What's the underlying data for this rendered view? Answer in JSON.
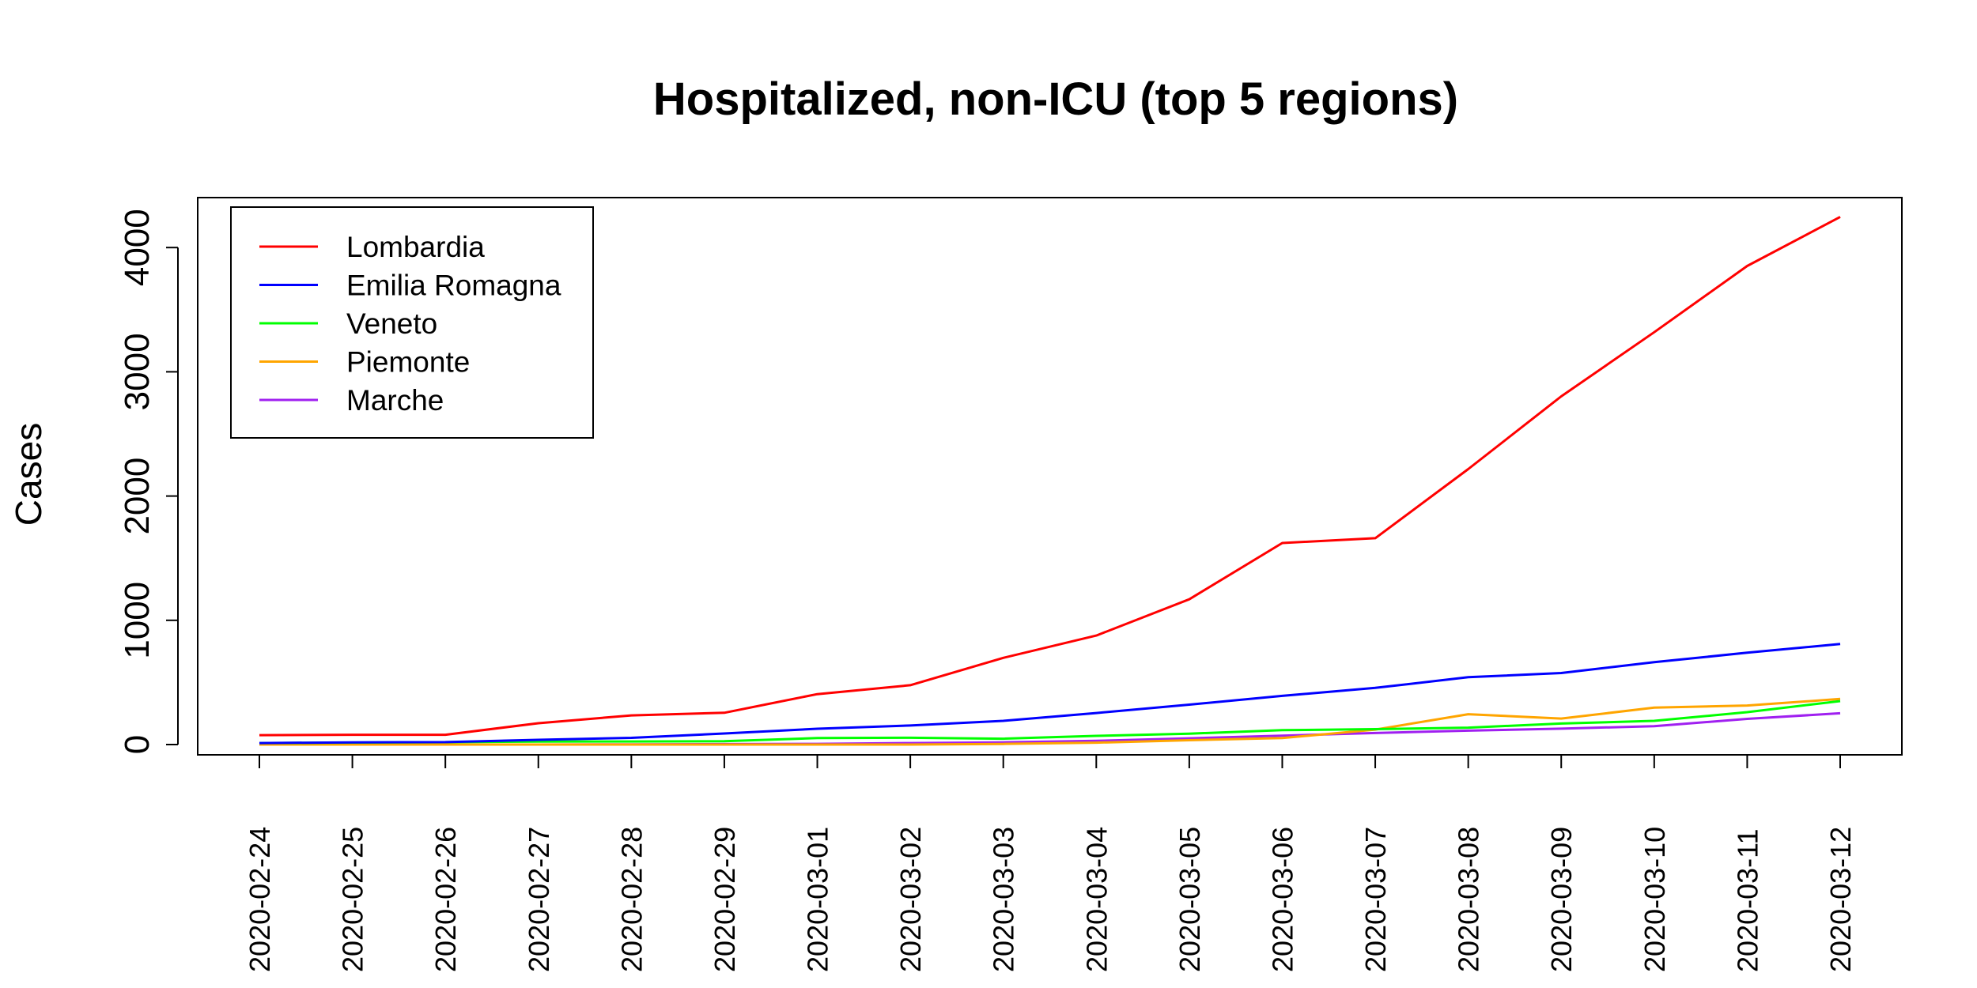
{
  "chart_data": {
    "type": "line",
    "title": "Hospitalized, non-ICU (top 5 regions)",
    "xlabel": "",
    "ylabel": "Cases",
    "ylim": [
      0,
      4400
    ],
    "yticks": [
      "0",
      "1000",
      "2000",
      "3000",
      "4000"
    ],
    "ytick_values": [
      0,
      1000,
      2000,
      3000,
      4000
    ],
    "categories": [
      "2020-02-24",
      "2020-02-25",
      "2020-02-26",
      "2020-02-27",
      "2020-02-28",
      "2020-02-29",
      "2020-03-01",
      "2020-03-02",
      "2020-03-03",
      "2020-03-04",
      "2020-03-05",
      "2020-03-06",
      "2020-03-07",
      "2020-03-08",
      "2020-03-09",
      "2020-03-10",
      "2020-03-11",
      "2020-03-12"
    ],
    "legend_position": "top-left",
    "grid": false,
    "series": [
      {
        "name": "Lombardia",
        "color": "#ff0000",
        "values": [
          76,
          79,
          79,
          172,
          235,
          256,
          406,
          478,
          698,
          877,
          1169,
          1622,
          1661,
          2217,
          2802,
          3319,
          3852,
          4247
        ]
      },
      {
        "name": "Emilia Romagna",
        "color": "#0000ff",
        "values": [
          12,
          18,
          20,
          38,
          54,
          89,
          127,
          153,
          191,
          254,
          321,
          392,
          456,
          542,
          576,
          663,
          739,
          809
        ]
      },
      {
        "name": "Veneto",
        "color": "#00ff00",
        "values": [
          12,
          16,
          19,
          24,
          25,
          27,
          52,
          55,
          47,
          70,
          88,
          116,
          124,
          136,
          169,
          191,
          261,
          350
        ]
      },
      {
        "name": "Piemonte",
        "color": "#ffa500",
        "values": [
          0,
          0,
          0,
          0,
          0,
          0,
          0,
          0,
          5,
          15,
          35,
          52,
          120,
          244,
          209,
          297,
          314,
          367
        ]
      },
      {
        "name": "Marche",
        "color": "#a020f0",
        "values": [
          0,
          0,
          0,
          0,
          2,
          4,
          6,
          12,
          18,
          30,
          50,
          72,
          93,
          112,
          128,
          148,
          207,
          252
        ]
      }
    ]
  }
}
